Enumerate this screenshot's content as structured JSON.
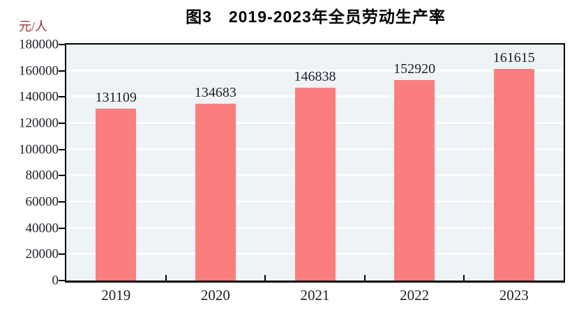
{
  "title": "图3　2019-2023年全员劳动生产率",
  "unit_label": "元/人",
  "chart_data": {
    "type": "bar",
    "title": "图3　2019-2023年全员劳动生产率",
    "ylabel": "元/人",
    "xlabel": "",
    "categories": [
      "2019",
      "2020",
      "2021",
      "2022",
      "2023"
    ],
    "values": [
      131109,
      134683,
      146838,
      152920,
      161615
    ],
    "data_labels": [
      "131109",
      "134683",
      "146838",
      "152920",
      "161615"
    ],
    "ylim": [
      0,
      180000
    ],
    "ytick_step": 20000,
    "yticks": [
      0,
      20000,
      40000,
      60000,
      80000,
      100000,
      120000,
      140000,
      160000,
      180000
    ],
    "grid": true,
    "legend_position": "none",
    "colors": {
      "bar": "#FA7E7E",
      "plot_background": "#EDF3F6",
      "gridline": "#FFFFFF",
      "axis": "#000000",
      "tick_text": "#1E1E28",
      "unit_label_text": "#943634",
      "title_text": "#000000",
      "page_background": "#FFFFFF"
    }
  }
}
